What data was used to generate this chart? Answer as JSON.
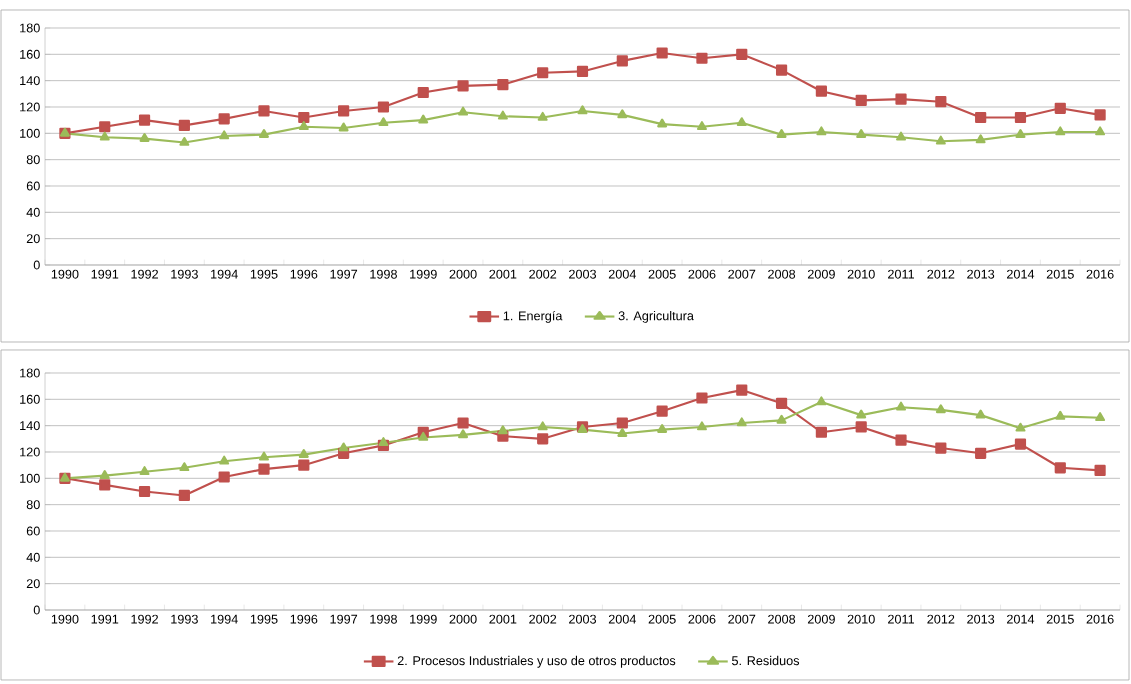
{
  "chart_data": [
    {
      "type": "line",
      "categories": [
        "1990",
        "1991",
        "1992",
        "1993",
        "1994",
        "1995",
        "1996",
        "1997",
        "1998",
        "1999",
        "2000",
        "2001",
        "2002",
        "2003",
        "2004",
        "2005",
        "2006",
        "2007",
        "2008",
        "2009",
        "2010",
        "2011",
        "2012",
        "2013",
        "2014",
        "2015",
        "2016"
      ],
      "series": [
        {
          "name": "1. Energía",
          "color": "#c0504d",
          "marker": "square",
          "values": [
            100,
            105,
            110,
            106,
            111,
            117,
            112,
            117,
            120,
            131,
            136,
            137,
            146,
            147,
            155,
            161,
            157,
            160,
            148,
            132,
            125,
            126,
            124,
            112,
            112,
            119,
            114
          ]
        },
        {
          "name": "3.  Agricultura",
          "color": "#9bbb59",
          "marker": "triangle",
          "values": [
            100,
            97,
            96,
            93,
            98,
            99,
            105,
            104,
            108,
            110,
            116,
            113,
            112,
            117,
            114,
            107,
            105,
            108,
            99,
            101,
            99,
            97,
            94,
            95,
            99,
            101,
            101
          ]
        }
      ],
      "ylim": [
        0,
        180
      ],
      "yticks": [
        0,
        20,
        40,
        60,
        80,
        100,
        120,
        140,
        160,
        180
      ],
      "grid": "y",
      "legend": "bottom"
    },
    {
      "type": "line",
      "categories": [
        "1990",
        "1991",
        "1992",
        "1993",
        "1994",
        "1995",
        "1996",
        "1997",
        "1998",
        "1999",
        "2000",
        "2001",
        "2002",
        "2003",
        "2004",
        "2005",
        "2006",
        "2007",
        "2008",
        "2009",
        "2010",
        "2011",
        "2012",
        "2013",
        "2014",
        "2015",
        "2016"
      ],
      "series": [
        {
          "name": "2.  Procesos Industriales y uso de otros productos",
          "color": "#c0504d",
          "marker": "square",
          "values": [
            100,
            95,
            90,
            87,
            101,
            107,
            110,
            119,
            125,
            135,
            142,
            132,
            130,
            139,
            142,
            151,
            161,
            167,
            157,
            135,
            139,
            129,
            123,
            119,
            126,
            108,
            106
          ]
        },
        {
          "name": "5. Residuos",
          "color": "#9bbb59",
          "marker": "triangle",
          "values": [
            100,
            102,
            105,
            108,
            113,
            116,
            118,
            123,
            127,
            131,
            133,
            136,
            139,
            137,
            134,
            137,
            139,
            142,
            144,
            158,
            148,
            154,
            152,
            148,
            138,
            147,
            146
          ]
        }
      ],
      "ylim": [
        0,
        180
      ],
      "yticks": [
        0,
        20,
        40,
        60,
        80,
        100,
        120,
        140,
        160,
        180
      ],
      "grid": "y",
      "legend": "bottom"
    }
  ]
}
